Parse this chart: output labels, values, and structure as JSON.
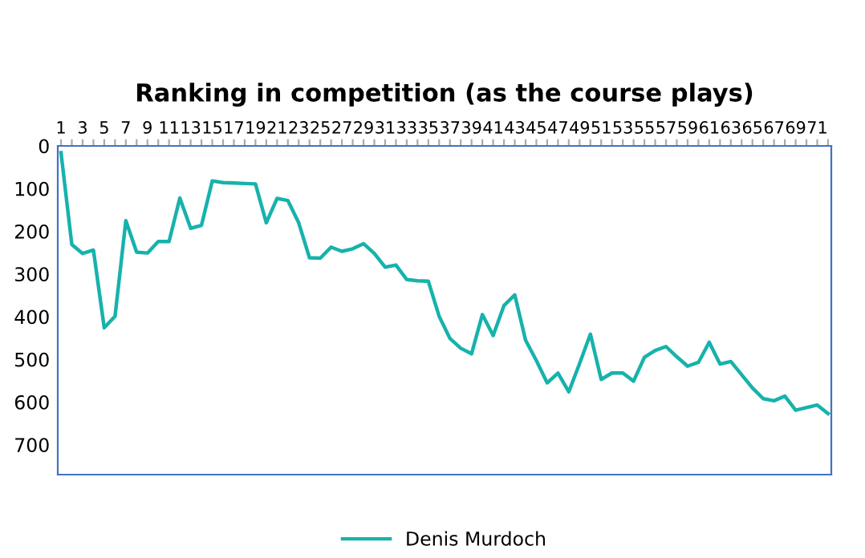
{
  "chart_data": {
    "type": "line",
    "title": "Ranking in competition (as the course plays)",
    "categories": [
      "1",
      null,
      "3",
      null,
      "5",
      null,
      "7",
      null,
      "9",
      null,
      "11",
      null,
      "13",
      null,
      "15",
      null,
      "17",
      null,
      "19",
      null,
      "21",
      null,
      "23",
      null,
      "25",
      null,
      "27",
      null,
      "29",
      null,
      "31",
      null,
      "33",
      null,
      "35",
      null,
      "37",
      null,
      "39",
      null,
      "41",
      null,
      "43",
      null,
      "45",
      null,
      "47",
      null,
      "49",
      null,
      "51",
      null,
      "53",
      null,
      "55",
      null,
      "57",
      null,
      "59",
      null,
      "61",
      null,
      "63",
      null,
      "65",
      null,
      "67",
      null,
      "69",
      null,
      "71",
      null
    ],
    "series": [
      {
        "name": "Denis Murdoch",
        "color": "#17b2ac",
        "values": [
          16,
          231,
          252,
          244,
          426,
          399,
          175,
          249,
          251,
          224,
          224,
          122,
          193,
          186,
          82,
          86,
          87,
          88,
          89,
          180,
          123,
          128,
          180,
          262,
          263,
          237,
          247,
          241,
          229,
          252,
          284,
          279,
          313,
          316,
          317,
          399,
          451,
          474,
          487,
          395,
          444,
          374,
          349,
          455,
          503,
          555,
          532,
          576,
          510,
          441,
          547,
          532,
          532,
          551,
          495,
          479,
          470,
          494,
          516,
          507,
          460,
          511,
          505,
          536,
          567,
          592,
          597,
          586,
          619,
          613,
          607,
          627
        ]
      }
    ],
    "ylim": [
      770,
      0
    ],
    "yticks": [
      0,
      100,
      200,
      300,
      400,
      500,
      600,
      700
    ],
    "grid": false,
    "legend": "bottom",
    "marker": "none",
    "line_style": "solid"
  }
}
